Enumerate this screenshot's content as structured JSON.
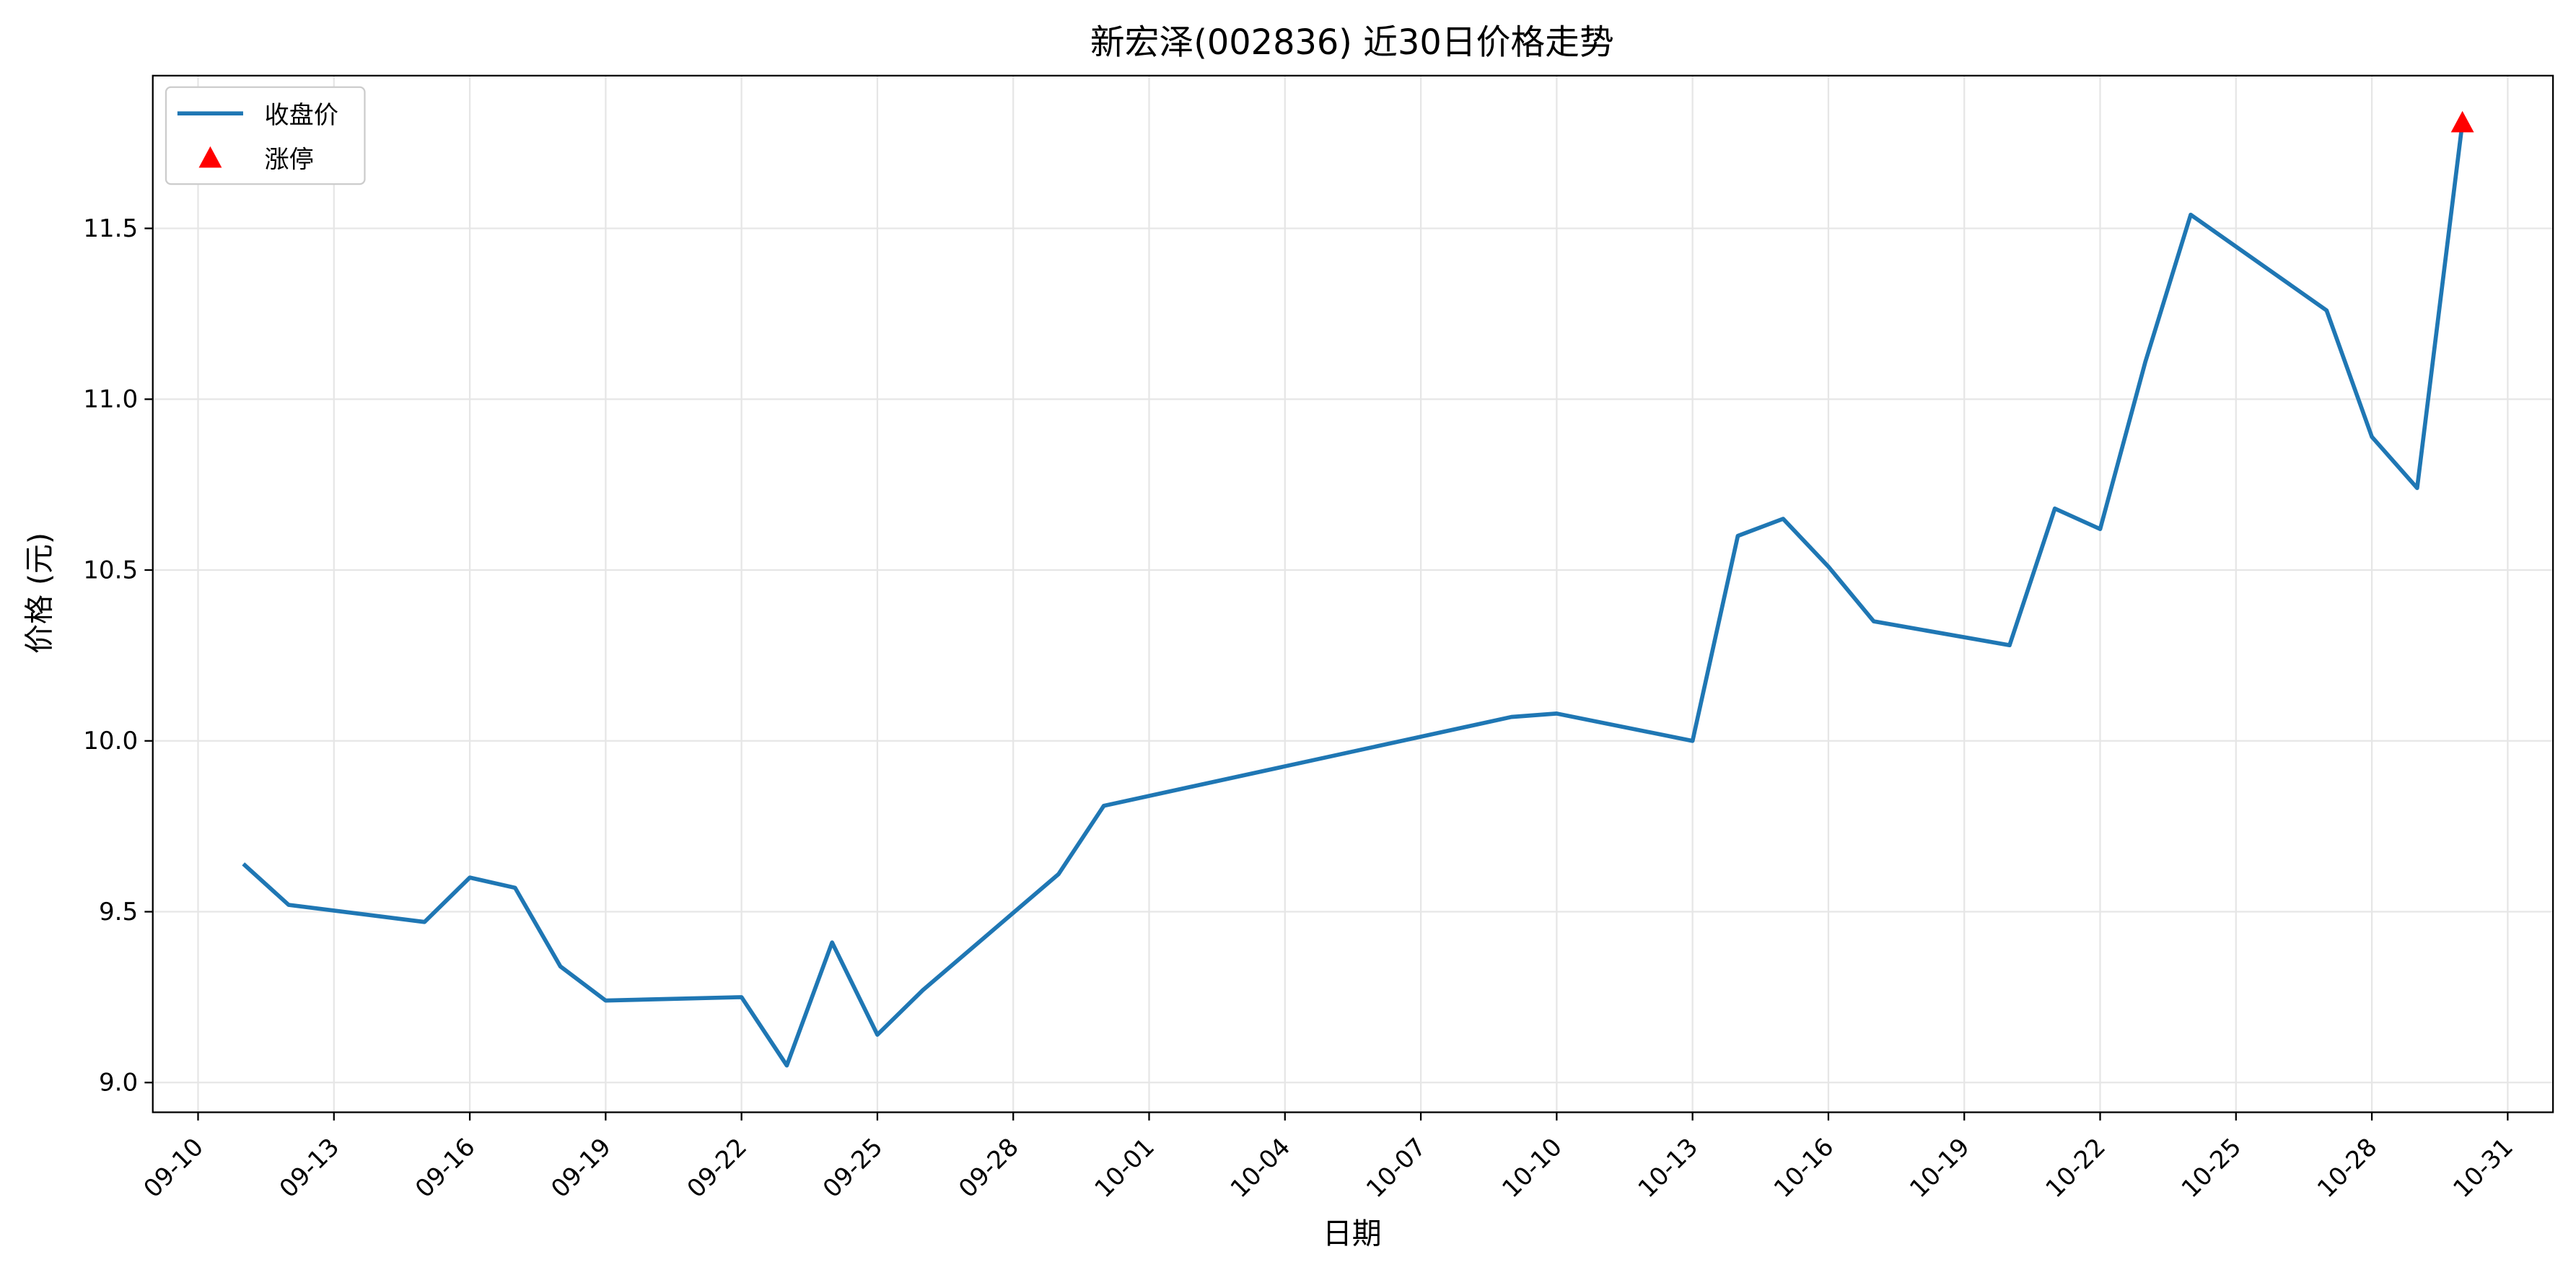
{
  "chart_data": {
    "type": "line",
    "title": "新宏泽(002836) 近30日价格走势",
    "xlabel": "日期",
    "ylabel": "价格 (元)",
    "x": [
      "09-11",
      "09-12",
      "09-15",
      "09-16",
      "09-17",
      "09-18",
      "09-19",
      "09-22",
      "09-23",
      "09-24",
      "09-25",
      "09-26",
      "09-29",
      "09-30",
      "10-09",
      "10-10",
      "10-13",
      "10-14",
      "10-15",
      "10-16",
      "10-17",
      "10-20",
      "10-21",
      "10-22",
      "10-23",
      "10-24",
      "10-27",
      "10-28",
      "10-29",
      "10-30"
    ],
    "series": [
      {
        "name": "收盘价",
        "color": "#1f77b4",
        "type": "line",
        "x": [
          "09-11",
          "09-12",
          "09-15",
          "09-16",
          "09-17",
          "09-18",
          "09-19",
          "09-22",
          "09-23",
          "09-24",
          "09-25",
          "09-26",
          "09-29",
          "09-30",
          "10-09",
          "10-10",
          "10-13",
          "10-14",
          "10-15",
          "10-16",
          "10-17",
          "10-20",
          "10-21",
          "10-22",
          "10-23",
          "10-24",
          "10-27",
          "10-28",
          "10-29",
          "10-30"
        ],
        "values": [
          9.64,
          9.52,
          9.47,
          9.6,
          9.57,
          9.34,
          9.24,
          9.25,
          9.05,
          9.41,
          9.14,
          9.27,
          9.61,
          9.81,
          10.07,
          10.08,
          10.0,
          10.6,
          10.65,
          10.51,
          10.35,
          10.28,
          10.68,
          10.62,
          11.11,
          11.54,
          11.26,
          10.89,
          10.74,
          11.81
        ]
      },
      {
        "name": "涨停",
        "color": "#ff0000",
        "type": "scatter",
        "marker": "triangle",
        "x": [
          "10-30"
        ],
        "values": [
          11.81
        ]
      }
    ],
    "xlim": [
      "09-09",
      "11-01"
    ],
    "xticks": [
      "09-10",
      "09-13",
      "09-16",
      "09-19",
      "09-22",
      "09-25",
      "09-28",
      "10-01",
      "10-04",
      "10-07",
      "10-10",
      "10-13",
      "10-16",
      "10-19",
      "10-22",
      "10-25",
      "10-28",
      "10-31"
    ],
    "ylim": [
      8.913,
      11.947
    ],
    "yticks": [
      {
        "value": 9,
        "label": "9.0"
      },
      9.5,
      {
        "value": 10,
        "label": "10.0"
      },
      10.5,
      {
        "value": 11,
        "label": "11.0"
      },
      11.5
    ],
    "grid": true,
    "legend": "upper left"
  }
}
